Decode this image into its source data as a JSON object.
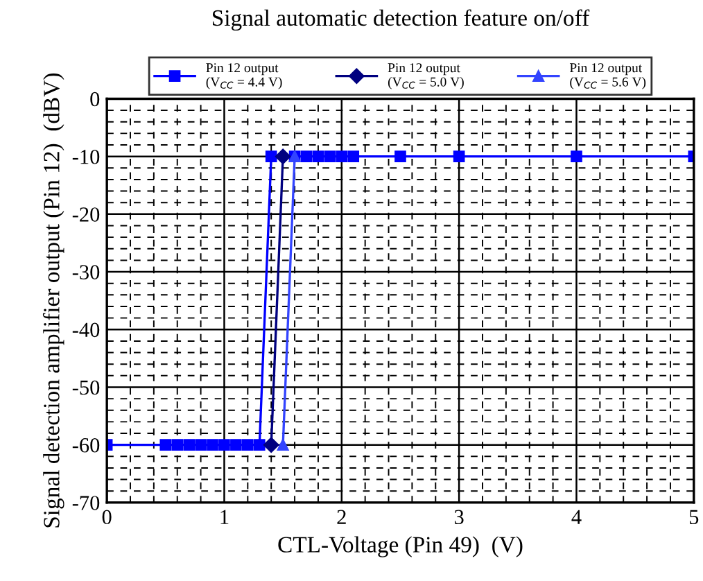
{
  "chart_data": {
    "type": "line",
    "title": "Signal automatic detection feature on/off",
    "xlabel": "CTL-Voltage (Pin 49)  (V)",
    "ylabel": "Signal detection amplifier output (Pin 12)  (dBV)",
    "xlim": [
      0,
      5
    ],
    "xticks": [
      0,
      1,
      2,
      3,
      4,
      5
    ],
    "ylim": [
      -70,
      0
    ],
    "yticks": [
      -70,
      -60,
      -50,
      -40,
      -30,
      -20,
      -10,
      0
    ],
    "grid": true,
    "legend": "top",
    "line_style": "solid",
    "series": [
      {
        "name": "Pin 12 output\n(V$_{CC}$ = 4.4 V)",
        "color": "#0000ff",
        "marker": "square",
        "x": [
          0,
          0.5,
          0.6,
          0.7,
          0.8,
          0.9,
          1.0,
          1.1,
          1.2,
          1.3,
          1.4,
          1.6,
          1.7,
          1.8,
          1.9,
          2.0,
          2.1,
          2.5,
          3,
          4,
          5
        ],
        "values": [
          -60,
          -60,
          -60,
          -60,
          -60,
          -60,
          -60,
          -60,
          -60,
          -60,
          -10,
          -10,
          -10,
          -10,
          -10,
          -10,
          -10,
          -10,
          -10,
          -10,
          -10
        ]
      },
      {
        "name": "Pin 12 output\n(V$_{CC}$ = 5.0 V)",
        "color": "#000080",
        "marker": "diamond",
        "x": [
          1.4,
          1.5
        ],
        "values": [
          -60,
          -10
        ]
      },
      {
        "name": "Pin 12 output\n(V$_{CC}$ = 5.6 V)",
        "color": "#3344ff",
        "marker": "triangle",
        "x": [
          1.5,
          1.6
        ],
        "values": [
          -60,
          -10
        ]
      }
    ]
  }
}
